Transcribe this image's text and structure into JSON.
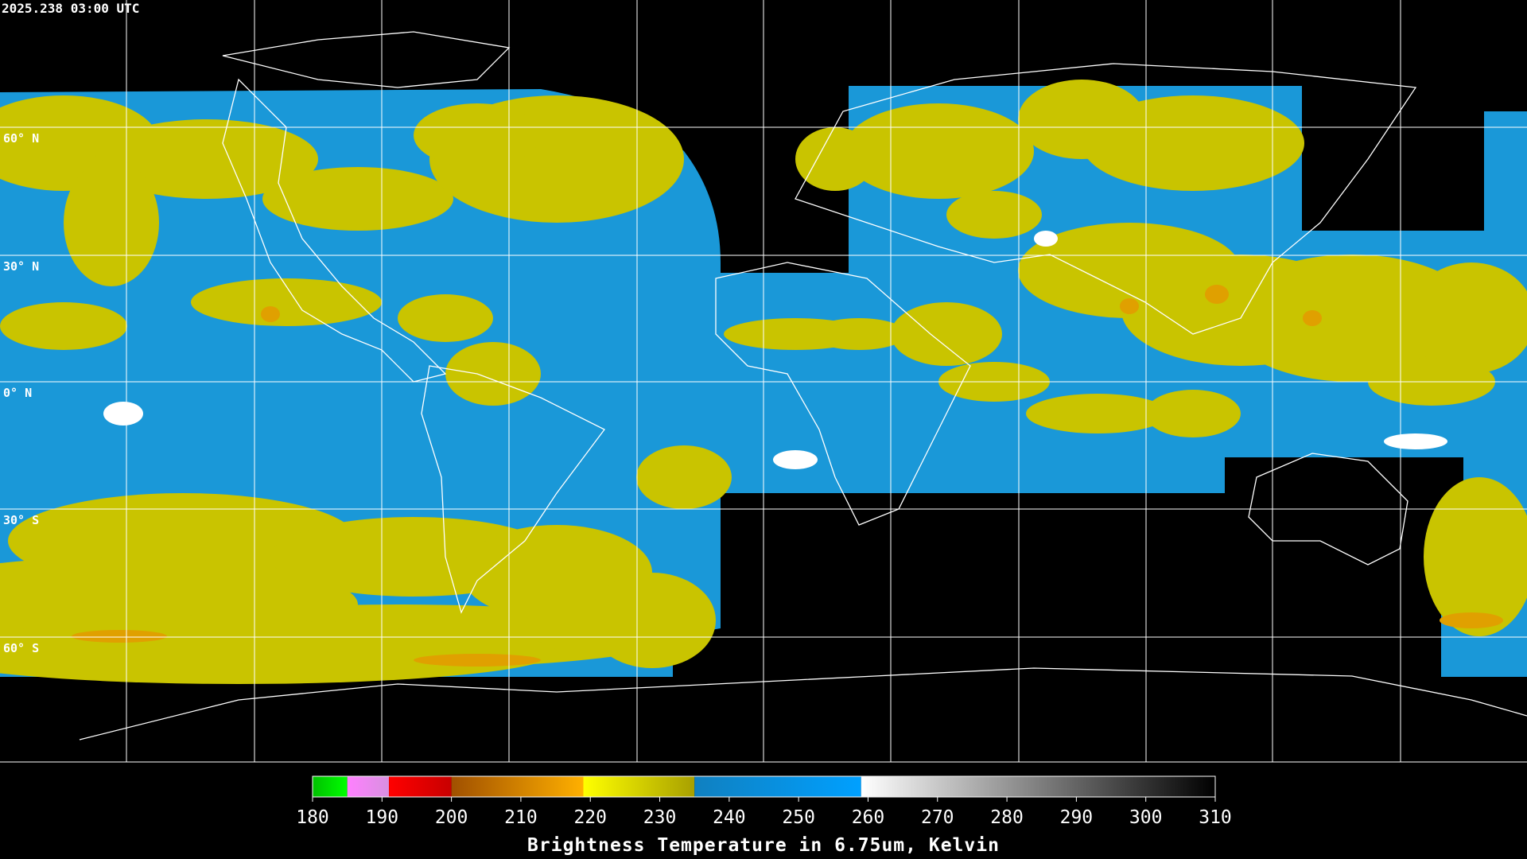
{
  "header": {
    "timestamp": "2025.238 03:00 UTC"
  },
  "grid": {
    "latitude_labels": [
      "60° N",
      "30° N",
      "0° N",
      "30° S",
      "60° S"
    ]
  },
  "colorbar": {
    "title": "Brightness Temperature in 6.75um, Kelvin",
    "ticks": [
      180,
      190,
      200,
      210,
      220,
      230,
      240,
      250,
      260,
      270,
      280,
      290,
      300,
      310
    ],
    "stops": [
      {
        "from": 180,
        "to": 185,
        "colors": [
          "#00c000",
          "#00ff00"
        ]
      },
      {
        "from": 185,
        "to": 191,
        "colors": [
          "#ff80ff",
          "#d890e0"
        ]
      },
      {
        "from": 191,
        "to": 200,
        "colors": [
          "#ff0000",
          "#c80000"
        ]
      },
      {
        "from": 200,
        "to": 219,
        "colors": [
          "#a05000",
          "#ffb000"
        ]
      },
      {
        "from": 219,
        "to": 235,
        "colors": [
          "#ffff00",
          "#a8a000"
        ]
      },
      {
        "from": 235,
        "to": 259,
        "colors": [
          "#1080c0",
          "#00a0ff"
        ]
      },
      {
        "from": 259,
        "to": 310,
        "colors": [
          "#ffffff",
          "#000000"
        ]
      }
    ]
  }
}
